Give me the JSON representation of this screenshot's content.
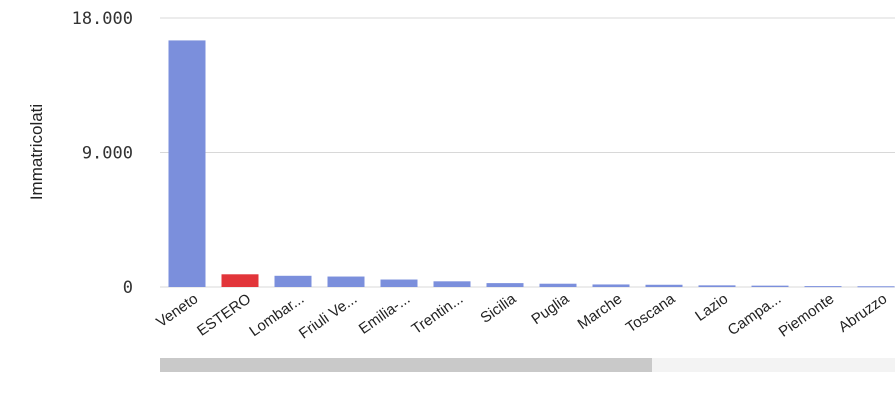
{
  "chart_data": {
    "type": "bar",
    "ylabel": "Immatricolati",
    "yticks": [
      "18.000",
      "9.000",
      "0"
    ],
    "ylim": [
      0,
      18000
    ],
    "grid": true,
    "categories": [
      "Veneto",
      "ESTERO",
      "Lombar...",
      "Friuli Ve...",
      "Emilia-...",
      "Trentin...",
      "Sicilia",
      "Puglia",
      "Marche",
      "Toscana",
      "Lazio",
      "Campa...",
      "Piemonte",
      "Abruzzo"
    ],
    "values": [
      16500,
      850,
      750,
      700,
      500,
      380,
      260,
      220,
      170,
      150,
      110,
      90,
      60,
      50
    ],
    "highlight_index": 1,
    "colors": {
      "bar": "#7b8fdc",
      "highlight": "#e2353a"
    }
  },
  "scrollbar": {
    "visible_fraction": 0.67
  }
}
